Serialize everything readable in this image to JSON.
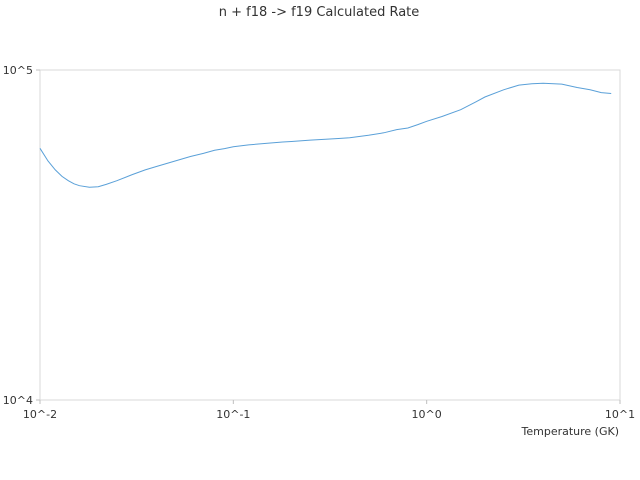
{
  "chart_data": {
    "type": "line",
    "title": "n + f18 -> f19 Calculated Rate",
    "xlabel": "Temperature (GK)",
    "ylabel": "",
    "x_scale": "log",
    "y_scale": "log",
    "xlim": [
      0.01,
      10
    ],
    "ylim": [
      10000,
      100000
    ],
    "x_ticks": [
      {
        "value": 0.01,
        "label": "10^-2"
      },
      {
        "value": 0.1,
        "label": "10^-1"
      },
      {
        "value": 1,
        "label": "10^0"
      },
      {
        "value": 10,
        "label": "10^1"
      }
    ],
    "y_ticks": [
      {
        "value": 10000,
        "label": "10^4"
      },
      {
        "value": 100000,
        "label": "10^5"
      }
    ],
    "grid": false,
    "legend": "none",
    "series": [
      {
        "color": "#5aa0d8",
        "x": [
          0.01,
          0.011,
          0.012,
          0.013,
          0.014,
          0.015,
          0.016,
          0.018,
          0.02,
          0.022,
          0.025,
          0.03,
          0.035,
          0.04,
          0.05,
          0.06,
          0.07,
          0.08,
          0.09,
          0.1,
          0.12,
          0.15,
          0.18,
          0.2,
          0.25,
          0.3,
          0.35,
          0.4,
          0.5,
          0.6,
          0.7,
          0.8,
          0.9,
          1.0,
          1.2,
          1.5,
          1.8,
          2.0,
          2.5,
          3.0,
          3.5,
          4.0,
          5.0,
          6.0,
          7.0,
          8.0,
          9.0
        ],
        "y": [
          57900,
          53000,
          49800,
          47600,
          46200,
          45200,
          44600,
          44100,
          44300,
          45000,
          46200,
          48200,
          49800,
          51000,
          53000,
          54700,
          55900,
          57100,
          57800,
          58500,
          59300,
          60000,
          60500,
          60700,
          61300,
          61700,
          62000,
          62300,
          63400,
          64500,
          66000,
          66700,
          68300,
          69900,
          72300,
          75800,
          80100,
          82800,
          87100,
          90000,
          90900,
          91200,
          90600,
          88500,
          87100,
          85400,
          84900
        ]
      }
    ]
  }
}
